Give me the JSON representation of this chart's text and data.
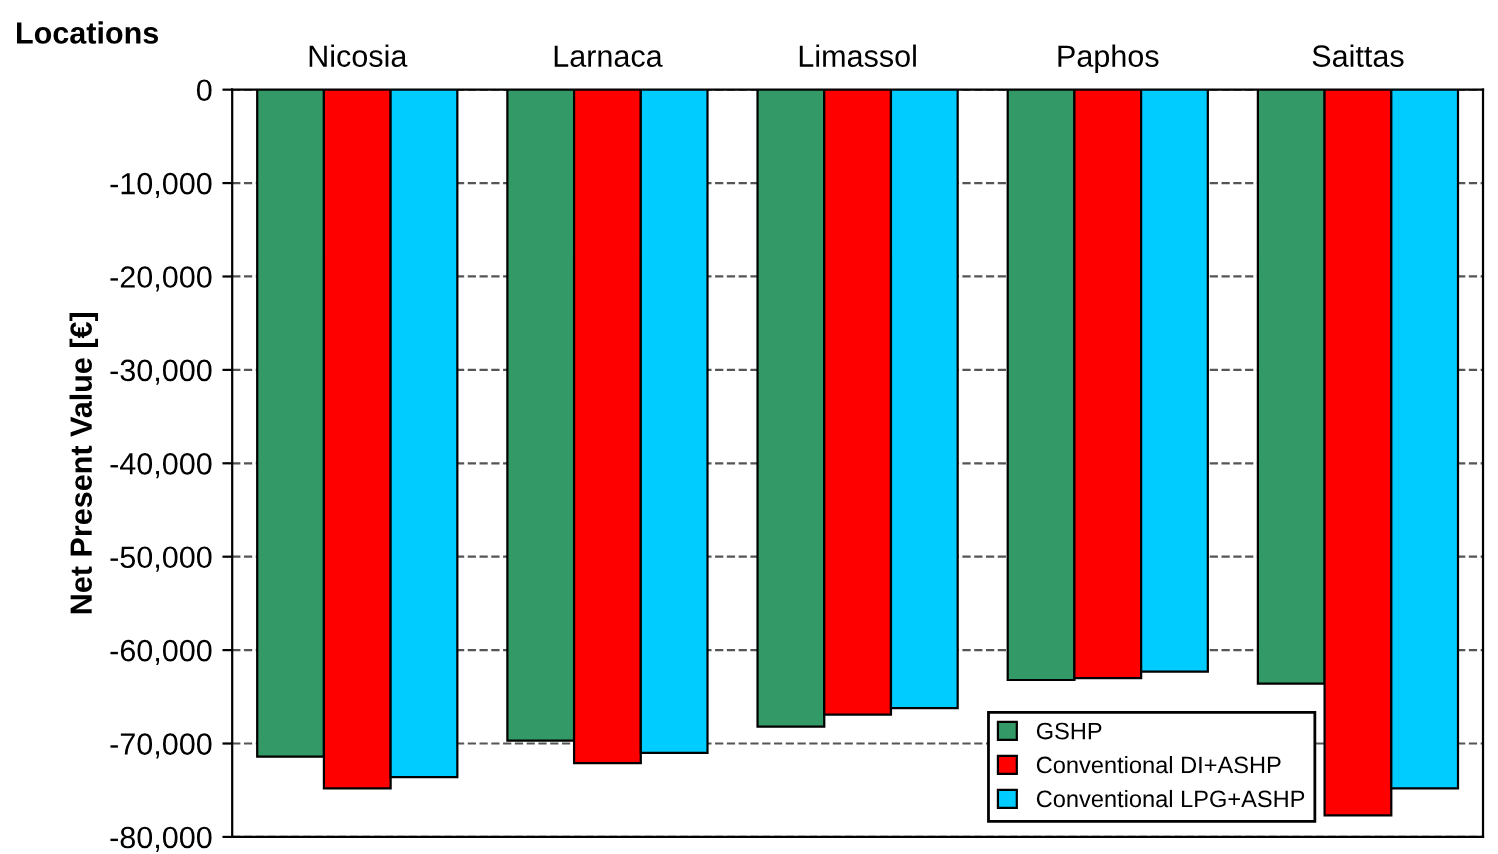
{
  "chart_data": {
    "type": "bar",
    "xlabel": "Locations",
    "ylabel": "Net Present Value [€]",
    "categories": [
      "Nicosia",
      "Larnaca",
      "Limassol",
      "Paphos",
      "Saittas"
    ],
    "series": [
      {
        "name": "GSHP",
        "color": "#339966",
        "values": [
          -71400,
          -69700,
          -68200,
          -63200,
          -63600
        ]
      },
      {
        "name": "Conventional DI+ASHP",
        "color": "#ff0000",
        "values": [
          -74800,
          -72100,
          -66900,
          -63000,
          -77700
        ]
      },
      {
        "name": "Conventional LPG+ASHP",
        "color": "#00ccff",
        "values": [
          -73600,
          -71000,
          -66200,
          -62300,
          -74800
        ]
      }
    ],
    "ylim": [
      -80000,
      0
    ],
    "yticks": [
      {
        "value": -80000,
        "label": "-80,000"
      },
      {
        "value": -70000,
        "label": "-70,000"
      },
      {
        "value": -60000,
        "label": "-60,000"
      },
      {
        "value": -50000,
        "label": "-50,000"
      },
      {
        "value": -40000,
        "label": "-40,000"
      },
      {
        "value": -30000,
        "label": "-30,000"
      },
      {
        "value": -20000,
        "label": "-20,000"
      },
      {
        "value": -10000,
        "label": "-10,000"
      },
      0
    ],
    "grid": "y",
    "legend": "bottom right"
  }
}
